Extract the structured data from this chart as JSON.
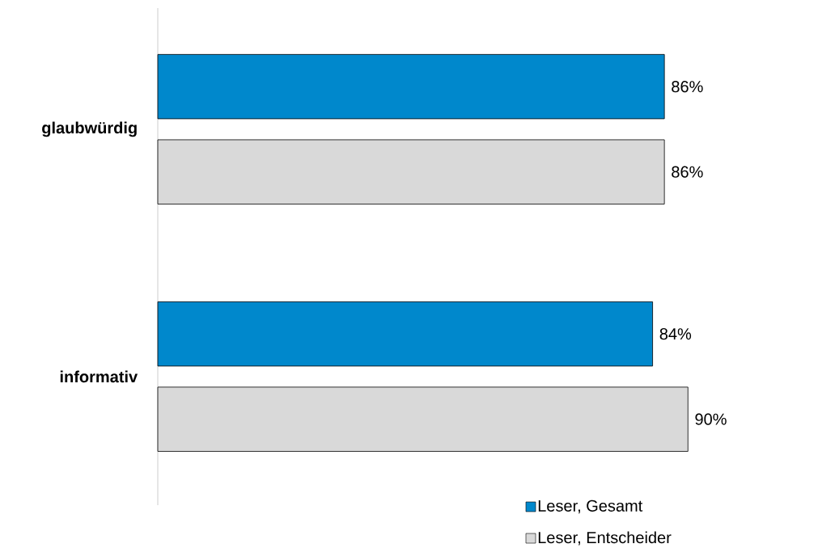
{
  "chart_data": {
    "type": "bar",
    "orientation": "horizontal",
    "categories": [
      "glaubwürdig",
      "informativ"
    ],
    "series": [
      {
        "name": "Leser, Gesamt",
        "color": "#0088cc",
        "values": [
          86,
          84
        ],
        "value_labels": [
          "86%",
          "84%"
        ]
      },
      {
        "name": "Leser, Entscheider",
        "color": "#d9d9d9",
        "values": [
          86,
          90
        ],
        "value_labels": [
          "86%",
          "90%"
        ]
      }
    ],
    "legend": "bottom right",
    "grid": false
  }
}
